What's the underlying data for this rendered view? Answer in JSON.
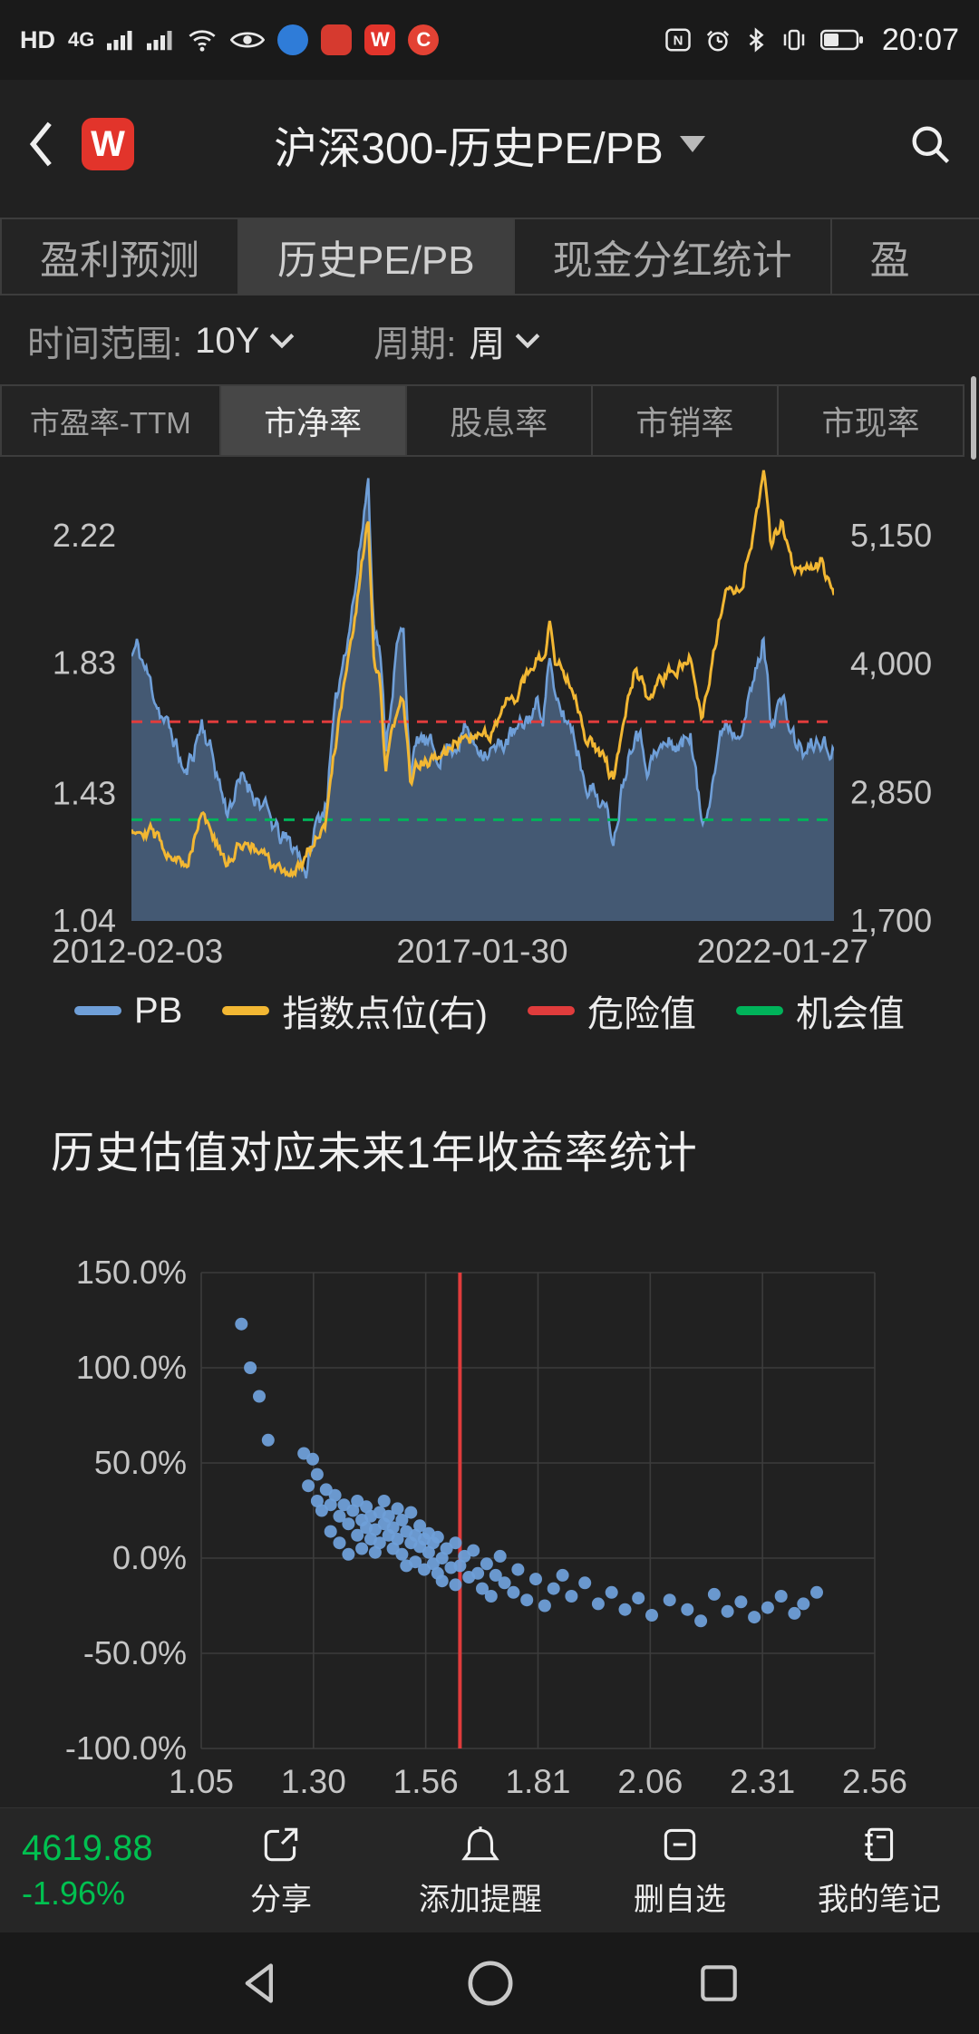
{
  "status_bar": {
    "hd": "HD",
    "network": "4G",
    "time": "20:07",
    "app_badge_w": "W",
    "app_badge_c": "C",
    "nfc_letter": "N"
  },
  "header": {
    "logo_letter": "W",
    "title": "沪深300-历史PE/PB"
  },
  "tabs": [
    {
      "label": "盈利预测",
      "active": false
    },
    {
      "label": "历史PE/PB",
      "active": true
    },
    {
      "label": "现金分红统计",
      "active": false
    },
    {
      "label": "盈",
      "active": false
    }
  ],
  "filters": {
    "range_label": "时间范围:",
    "range_value": "10Y",
    "period_label": "周期:",
    "period_value": "周"
  },
  "metric_tabs": [
    {
      "label": "市盈率-TTM",
      "active": false
    },
    {
      "label": "市净率",
      "active": true
    },
    {
      "label": "股息率",
      "active": false
    },
    {
      "label": "市销率",
      "active": false
    },
    {
      "label": "市现率",
      "active": false
    }
  ],
  "section_title": "历史估值对应未来1年收益率统计",
  "footer": {
    "index_value": "4619.88",
    "index_change": "-1.96%",
    "actions": [
      {
        "label": "分享",
        "icon": "share-icon"
      },
      {
        "label": "添加提醒",
        "icon": "bell-icon"
      },
      {
        "label": "删自选",
        "icon": "minus-square-icon"
      },
      {
        "label": "我的笔记",
        "icon": "notebook-icon"
      }
    ]
  },
  "colors": {
    "pb": "#6f9fd8",
    "pb_area": "rgba(104,146,198,0.5)",
    "index": "#f2b733",
    "danger": "#e03c3c",
    "opportunity": "#00b35a",
    "quote_green": "#00c050",
    "grid": "#3c3c3c",
    "axis_text": "#c6c6c6"
  },
  "chart_data": [
    {
      "type": "line",
      "title": "沪深300 历史PB走势(周线, 10Y)",
      "x_labels": [
        "2012-02-03",
        "2017-01-30",
        "2022-01-27"
      ],
      "left_axis": {
        "tick_labels": [
          "2.22",
          "1.83",
          "1.43",
          "1.04"
        ],
        "tick_values": [
          2.22,
          1.83,
          1.43,
          1.04
        ],
        "min": 1.04,
        "max": 2.22
      },
      "right_axis": {
        "tick_labels": [
          "5,150",
          "4,000",
          "2,850",
          "1,700"
        ],
        "tick_values": [
          5150,
          4000,
          2850,
          1700
        ],
        "min": 1700,
        "max": 5150
      },
      "series": [
        {
          "name": "PB",
          "axis": "left",
          "type": "area-line",
          "color": "#6f9fd8",
          "keypoints": [
            [
              0,
              1.85
            ],
            [
              0.008,
              1.88
            ],
            [
              0.025,
              1.78
            ],
            [
              0.045,
              1.66
            ],
            [
              0.06,
              1.6
            ],
            [
              0.077,
              1.48
            ],
            [
              0.1,
              1.65
            ],
            [
              0.115,
              1.55
            ],
            [
              0.135,
              1.38
            ],
            [
              0.16,
              1.48
            ],
            [
              0.185,
              1.4
            ],
            [
              0.21,
              1.3
            ],
            [
              0.235,
              1.26
            ],
            [
              0.25,
              1.19
            ],
            [
              0.262,
              1.33
            ],
            [
              0.277,
              1.4
            ],
            [
              0.287,
              1.62
            ],
            [
              0.295,
              1.76
            ],
            [
              0.32,
              2.08
            ],
            [
              0.337,
              2.4
            ],
            [
              0.345,
              1.95
            ],
            [
              0.353,
              1.88
            ],
            [
              0.362,
              1.58
            ],
            [
              0.378,
              1.88
            ],
            [
              0.387,
              1.93
            ],
            [
              0.397,
              1.5
            ],
            [
              0.41,
              1.6
            ],
            [
              0.435,
              1.55
            ],
            [
              0.46,
              1.58
            ],
            [
              0.477,
              1.63
            ],
            [
              0.487,
              1.58
            ],
            [
              0.52,
              1.56
            ],
            [
              0.535,
              1.6
            ],
            [
              0.552,
              1.62
            ],
            [
              0.577,
              1.7
            ],
            [
              0.587,
              1.68
            ],
            [
              0.595,
              1.87
            ],
            [
              0.603,
              1.7
            ],
            [
              0.628,
              1.63
            ],
            [
              0.645,
              1.48
            ],
            [
              0.67,
              1.4
            ],
            [
              0.687,
              1.3
            ],
            [
              0.7,
              1.48
            ],
            [
              0.718,
              1.65
            ],
            [
              0.735,
              1.52
            ],
            [
              0.76,
              1.58
            ],
            [
              0.785,
              1.58
            ],
            [
              0.795,
              1.63
            ],
            [
              0.812,
              1.33
            ],
            [
              0.845,
              1.66
            ],
            [
              0.86,
              1.62
            ],
            [
              0.877,
              1.7
            ],
            [
              0.893,
              1.83
            ],
            [
              0.9,
              1.91
            ],
            [
              0.91,
              1.66
            ],
            [
              0.925,
              1.72
            ],
            [
              0.942,
              1.6
            ],
            [
              0.958,
              1.55
            ],
            [
              0.983,
              1.6
            ],
            [
              0.995,
              1.54
            ],
            [
              1,
              1.58
            ]
          ]
        },
        {
          "name": "指数点位(右)",
          "axis": "right",
          "type": "line",
          "color": "#f2b733",
          "keypoints": [
            [
              0,
              2550
            ],
            [
              0.025,
              2520
            ],
            [
              0.045,
              2380
            ],
            [
              0.06,
              2300
            ],
            [
              0.077,
              2150
            ],
            [
              0.1,
              2720
            ],
            [
              0.115,
              2480
            ],
            [
              0.135,
              2180
            ],
            [
              0.16,
              2430
            ],
            [
              0.185,
              2290
            ],
            [
              0.21,
              2140
            ],
            [
              0.235,
              2150
            ],
            [
              0.26,
              2420
            ],
            [
              0.277,
              2580
            ],
            [
              0.287,
              3150
            ],
            [
              0.295,
              3480
            ],
            [
              0.32,
              4450
            ],
            [
              0.337,
              5350
            ],
            [
              0.345,
              3980
            ],
            [
              0.353,
              3850
            ],
            [
              0.362,
              3030
            ],
            [
              0.378,
              3620
            ],
            [
              0.387,
              3730
            ],
            [
              0.397,
              2920
            ],
            [
              0.41,
              3130
            ],
            [
              0.435,
              3130
            ],
            [
              0.46,
              3290
            ],
            [
              0.477,
              3440
            ],
            [
              0.487,
              3330
            ],
            [
              0.52,
              3440
            ],
            [
              0.535,
              3640
            ],
            [
              0.552,
              3740
            ],
            [
              0.577,
              4080
            ],
            [
              0.587,
              3990
            ],
            [
              0.595,
              4370
            ],
            [
              0.603,
              4040
            ],
            [
              0.628,
              3840
            ],
            [
              0.645,
              3390
            ],
            [
              0.67,
              3140
            ],
            [
              0.687,
              2970
            ],
            [
              0.7,
              3440
            ],
            [
              0.718,
              3990
            ],
            [
              0.735,
              3640
            ],
            [
              0.76,
              3890
            ],
            [
              0.785,
              3990
            ],
            [
              0.795,
              4140
            ],
            [
              0.812,
              3540
            ],
            [
              0.845,
              4640
            ],
            [
              0.86,
              4590
            ],
            [
              0.877,
              4890
            ],
            [
              0.893,
              5490
            ],
            [
              0.9,
              5740
            ],
            [
              0.91,
              5040
            ],
            [
              0.925,
              5290
            ],
            [
              0.942,
              4890
            ],
            [
              0.958,
              4840
            ],
            [
              0.983,
              4910
            ],
            [
              0.995,
              4690
            ],
            [
              1,
              4620
            ]
          ]
        },
        {
          "name": "危险值",
          "axis": "left",
          "type": "dashed-hline",
          "color": "#e03c3c",
          "value": 1.65
        },
        {
          "name": "机会值",
          "axis": "left",
          "type": "dashed-hline",
          "color": "#00b35a",
          "value": 1.35
        }
      ],
      "legend": [
        {
          "label": "PB",
          "color": "#6f9fd8"
        },
        {
          "label": "指数点位(右)",
          "color": "#f2b733"
        },
        {
          "label": "危险值",
          "color": "#e03c3c"
        },
        {
          "label": "机会值",
          "color": "#00b35a"
        }
      ]
    },
    {
      "type": "scatter",
      "title": "历史估值对应未来1年收益率统计",
      "x_tick_labels": [
        "1.05",
        "1.30",
        "1.56",
        "1.81",
        "2.06",
        "2.31",
        "2.56"
      ],
      "y_tick_labels": [
        "150.0%",
        "100.0%",
        "50.0%",
        "0.0%",
        "-50.0%",
        "-100.0%"
      ],
      "x_range": [
        1.05,
        2.56
      ],
      "y_range_pct": [
        150,
        -100
      ],
      "marker_color": "#6f9fd8",
      "current_value_line": {
        "x": 1.63,
        "color": "#e03c3c"
      },
      "points": [
        [
          1.14,
          123
        ],
        [
          1.16,
          100
        ],
        [
          1.18,
          85
        ],
        [
          1.2,
          62
        ],
        [
          1.28,
          55
        ],
        [
          1.29,
          38
        ],
        [
          1.3,
          52
        ],
        [
          1.31,
          30
        ],
        [
          1.31,
          44
        ],
        [
          1.32,
          25
        ],
        [
          1.33,
          36
        ],
        [
          1.34,
          28
        ],
        [
          1.34,
          14
        ],
        [
          1.35,
          33
        ],
        [
          1.36,
          22
        ],
        [
          1.36,
          8
        ],
        [
          1.37,
          28
        ],
        [
          1.38,
          18
        ],
        [
          1.38,
          2
        ],
        [
          1.39,
          25
        ],
        [
          1.4,
          12
        ],
        [
          1.4,
          30
        ],
        [
          1.41,
          20
        ],
        [
          1.41,
          5
        ],
        [
          1.42,
          16
        ],
        [
          1.42,
          27
        ],
        [
          1.43,
          10
        ],
        [
          1.43,
          22
        ],
        [
          1.44,
          15
        ],
        [
          1.44,
          3
        ],
        [
          1.45,
          24
        ],
        [
          1.45,
          8
        ],
        [
          1.46,
          18
        ],
        [
          1.46,
          30
        ],
        [
          1.47,
          12
        ],
        [
          1.47,
          22
        ],
        [
          1.48,
          5
        ],
        [
          1.48,
          16
        ],
        [
          1.49,
          10
        ],
        [
          1.49,
          26
        ],
        [
          1.5,
          20
        ],
        [
          1.5,
          2
        ],
        [
          1.51,
          14
        ],
        [
          1.51,
          -4
        ],
        [
          1.52,
          8
        ],
        [
          1.52,
          24
        ],
        [
          1.53,
          12
        ],
        [
          1.53,
          -2
        ],
        [
          1.54,
          6
        ],
        [
          1.54,
          17
        ],
        [
          1.55,
          10
        ],
        [
          1.55,
          -6
        ],
        [
          1.56,
          3
        ],
        [
          1.56,
          13
        ],
        [
          1.57,
          -3
        ],
        [
          1.57,
          8
        ],
        [
          1.58,
          -8
        ],
        [
          1.58,
          11
        ],
        [
          1.59,
          0
        ],
        [
          1.59,
          -12
        ],
        [
          1.6,
          5
        ],
        [
          1.61,
          -5
        ],
        [
          1.62,
          8
        ],
        [
          1.62,
          -14
        ],
        [
          1.63,
          -4
        ],
        [
          1.64,
          1
        ],
        [
          1.65,
          -10
        ],
        [
          1.66,
          4
        ],
        [
          1.67,
          -8
        ],
        [
          1.68,
          -16
        ],
        [
          1.69,
          -3
        ],
        [
          1.7,
          -20
        ],
        [
          1.71,
          -9
        ],
        [
          1.72,
          1
        ],
        [
          1.73,
          -13
        ],
        [
          1.75,
          -18
        ],
        [
          1.76,
          -6
        ],
        [
          1.78,
          -22
        ],
        [
          1.8,
          -11
        ],
        [
          1.82,
          -25
        ],
        [
          1.84,
          -16
        ],
        [
          1.86,
          -9
        ],
        [
          1.88,
          -20
        ],
        [
          1.91,
          -13
        ],
        [
          1.94,
          -24
        ],
        [
          1.97,
          -18
        ],
        [
          2.0,
          -27
        ],
        [
          2.03,
          -21
        ],
        [
          2.06,
          -30
        ],
        [
          2.1,
          -22
        ],
        [
          2.14,
          -27
        ],
        [
          2.17,
          -33
        ],
        [
          2.2,
          -19
        ],
        [
          2.23,
          -28
        ],
        [
          2.26,
          -23
        ],
        [
          2.29,
          -31
        ],
        [
          2.32,
          -26
        ],
        [
          2.35,
          -20
        ],
        [
          2.38,
          -29
        ],
        [
          2.4,
          -24
        ],
        [
          2.43,
          -18
        ]
      ]
    }
  ],
  "nav_bar": {
    "icons": [
      "back",
      "home",
      "recents"
    ]
  }
}
